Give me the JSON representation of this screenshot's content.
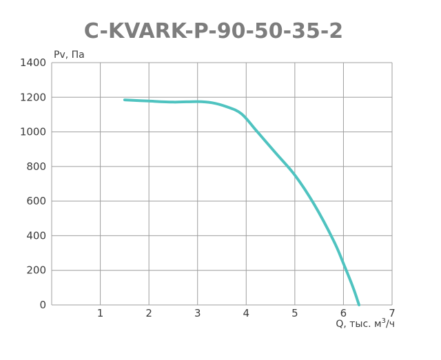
{
  "chart_data": {
    "type": "line",
    "title": "C-KVARK-P-90-50-35-2",
    "ylabel": "Pv, Па",
    "xlabel_main": "Q, тыс. м",
    "xlabel_sup": "3",
    "xlabel_tail": "/ч",
    "xlim": [
      0,
      7
    ],
    "ylim": [
      0,
      1400
    ],
    "x_ticks": [
      1,
      2,
      3,
      4,
      5,
      6,
      7
    ],
    "x_tick_labels": [
      "1",
      "2",
      "3",
      "4",
      "5",
      "6",
      "7"
    ],
    "y_ticks": [
      0,
      200,
      400,
      600,
      800,
      1000,
      1200,
      1400
    ],
    "y_tick_labels": [
      "0",
      "200",
      "400",
      "600",
      "800",
      "1000",
      "1200",
      "1400"
    ],
    "grid": true,
    "series": [
      {
        "color": "#4fc3c0",
        "x": [
          1.5,
          2.0,
          2.5,
          3.0,
          3.3,
          3.6,
          3.9,
          4.2,
          4.6,
          5.0,
          5.4,
          5.8,
          6.0,
          6.2,
          6.32
        ],
        "y": [
          1185,
          1178,
          1172,
          1175,
          1168,
          1145,
          1105,
          1010,
          880,
          750,
          580,
          370,
          240,
          100,
          0
        ]
      }
    ]
  }
}
